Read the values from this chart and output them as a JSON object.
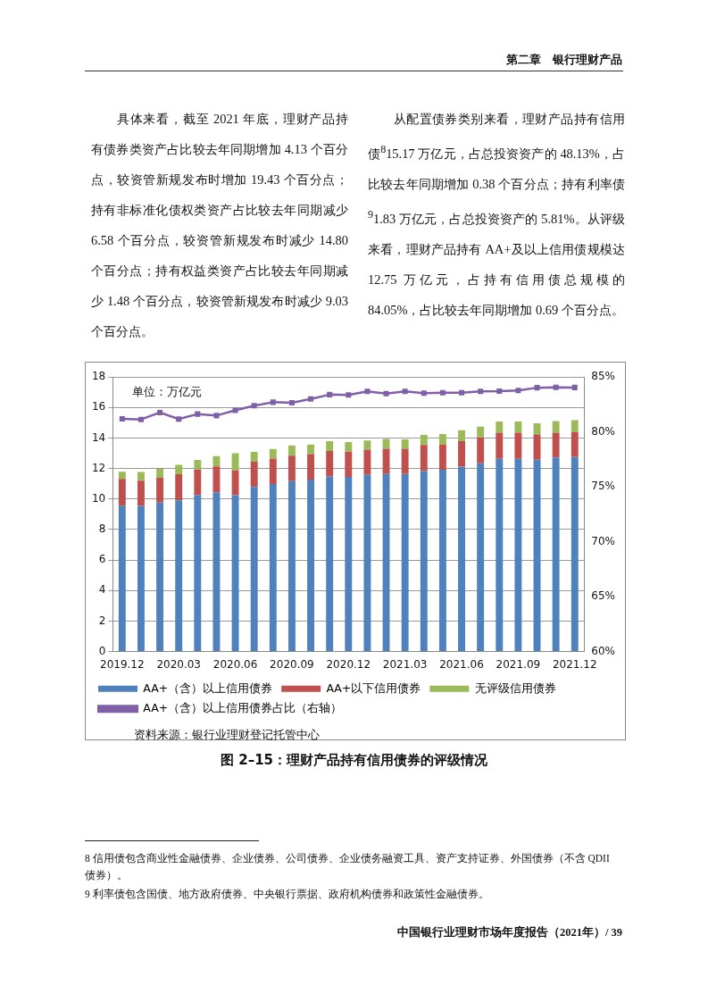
{
  "chart_data": {
    "type": "bar",
    "title": "图 2–15：理财产品持有信用债券的评级情况",
    "categories": [
      "2019.12",
      null,
      null,
      "2020.03",
      null,
      null,
      "2020.06",
      null,
      null,
      "2020.09",
      null,
      null,
      "2020.12",
      null,
      null,
      "2021.03",
      null,
      null,
      "2021.06",
      null,
      null,
      "2021.09",
      null,
      null,
      "2021.12"
    ],
    "stacked": true,
    "series": [
      {
        "name": "AA+（含）以上信用债券",
        "color": "#4f81bd",
        "values": [
          9.57,
          9.55,
          9.77,
          9.92,
          10.27,
          10.45,
          10.25,
          10.8,
          10.99,
          11.17,
          11.28,
          11.48,
          11.46,
          11.59,
          11.65,
          11.65,
          11.84,
          11.92,
          12.12,
          12.35,
          12.64,
          12.64,
          12.58,
          12.72,
          12.75
        ]
      },
      {
        "name": "AA+以下信用债券",
        "color": "#c0504d",
        "values": [
          1.75,
          1.66,
          1.63,
          1.71,
          1.66,
          1.69,
          1.64,
          1.65,
          1.66,
          1.67,
          1.66,
          1.67,
          1.65,
          1.65,
          1.65,
          1.65,
          1.71,
          1.65,
          1.67,
          1.69,
          1.71,
          1.71,
          1.65,
          1.63,
          1.65
        ]
      },
      {
        "name": "无评级信用债券",
        "color": "#9bbb59",
        "values": [
          0.47,
          0.56,
          0.58,
          0.61,
          0.64,
          0.68,
          1.11,
          0.64,
          0.64,
          0.68,
          0.64,
          0.64,
          0.63,
          0.6,
          0.64,
          0.62,
          0.66,
          0.7,
          0.73,
          0.7,
          0.74,
          0.74,
          0.74,
          0.76,
          0.77
        ]
      },
      {
        "name": "AA+（含）以上信用债券占比（右轴）",
        "type": "line",
        "axis": "y2",
        "color": "#7f60a8",
        "values": [
          81.2,
          81.14,
          81.77,
          81.17,
          81.63,
          81.49,
          81.97,
          82.4,
          82.71,
          82.66,
          83.0,
          83.4,
          83.37,
          83.69,
          83.49,
          83.69,
          83.54,
          83.57,
          83.57,
          83.69,
          83.71,
          83.77,
          84.03,
          84.06,
          84.05
        ]
      }
    ],
    "ylim": [
      0,
      18
    ],
    "yticks": [
      0,
      2,
      4,
      6,
      8,
      10,
      12,
      14,
      16,
      18
    ],
    "y2lim": [
      60,
      85
    ],
    "y2ticks": [
      {
        "value": 60,
        "label": "60%"
      },
      {
        "value": 65,
        "label": "65%"
      },
      {
        "value": 70,
        "label": "70%"
      },
      {
        "value": 75,
        "label": "75%"
      },
      {
        "value": 80,
        "label": "80%"
      },
      {
        "value": 85,
        "label": "85%"
      }
    ],
    "grid": "y",
    "legend": "bottom",
    "marker": "square",
    "line_style": "solid",
    "annotations": [
      "第二章　银行理财产品",
      "具体来看，截至 2021 年底，理财产品持有债券类资产占比较去年同期增加 4.13 个百分点，较资管新规发布时增加 19.43 个百分点；持有非标准化债权类资产占比较去年同期减少 6.58 个百分点，较资管新规发布时减少 14.80 个百分点；持有权益类资产占比较去年同期减少 1.48 个百分点，较资管新规发布时减少 9.03 个百分点。",
      "从配置债券类别来看，理财产品持有信用债$^{8}$15.17 万亿元，占总投资资产的 48.13%，占比较去年同期增加 0.38 个百分点；持有利率债$^{9}$1.83 万亿元，占总投资资产的 5.81%。从评级来看，理财产品持有 AA+及以上信用债规模达 12.75 万亿元，占持有信用债总规模的 84.05%，占比较去年同期增加 0.69 个百分点。",
      "单位：万亿元",
      "资料来源：银行业理财登记托管中心",
      "8 信用债包含商业性金融债券、企业债券、公司债券、企业债务融资工具、资产支持证券、外国债券（不含 QDII 债券）。",
      "9 利率债包含国债、地方政府债券、中央银行票据、政府机构债券和政策性金融债券。",
      "中国银行业理财市场年度报告（2021年）/ 39"
    ]
  }
}
